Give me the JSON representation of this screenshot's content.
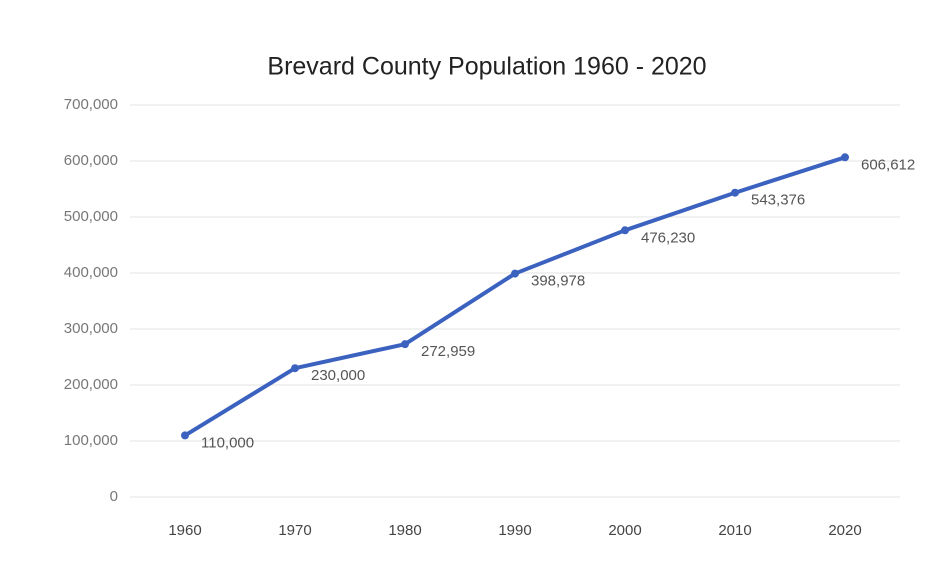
{
  "chart_data": {
    "type": "line",
    "title": "Brevard County Population 1960 - 2020",
    "categories": [
      "1960",
      "1970",
      "1980",
      "1990",
      "2000",
      "2010",
      "2020"
    ],
    "values": [
      110000,
      230000,
      272959,
      398978,
      476230,
      543376,
      606612
    ],
    "value_labels": [
      "110,000",
      "230,000",
      "272,959",
      "398,978",
      "476,230",
      "543,376",
      "606,612"
    ],
    "color": "#3c62c0",
    "ylim": [
      0,
      700000
    ],
    "yticks": [
      0,
      {
        "value": 100000,
        "label": "100,000"
      },
      {
        "value": 200000,
        "label": "200,000"
      },
      {
        "value": 300000,
        "label": "300,000"
      },
      {
        "value": 400000,
        "label": "400,000"
      },
      {
        "value": 500000,
        "label": "500,000"
      },
      {
        "value": 600000,
        "label": "600,000"
      },
      {
        "value": 700000,
        "label": "700,000"
      }
    ],
    "grid": true
  }
}
